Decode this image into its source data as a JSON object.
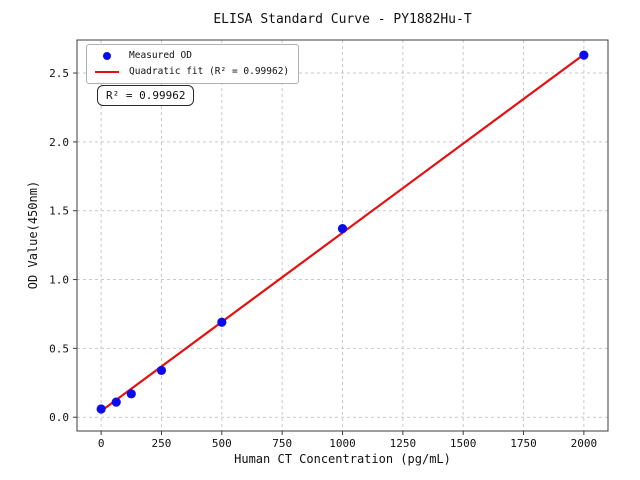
{
  "figure": {
    "background": "#ffffff",
    "text_color": "#111111",
    "axis_color": "#3c3c3c"
  },
  "chart_data": {
    "type": "scatter",
    "title": "ELISA Standard Curve - PY1882Hu-T",
    "xlabel": "Human CT Concentration (pg/mL)",
    "ylabel": "OD Value(450nm)",
    "xlim": [
      -100,
      2100
    ],
    "ylim": [
      -0.1,
      2.74
    ],
    "xticks": {
      "values": [
        0,
        250,
        500,
        750,
        1000,
        1250,
        1500,
        1750,
        2000
      ],
      "labels": [
        "0",
        "250",
        "500",
        "750",
        "1000",
        "1250",
        "1500",
        "1750",
        "2000"
      ]
    },
    "yticks": {
      "values": [
        0.0,
        0.5,
        1.0,
        1.5,
        2.0,
        2.5
      ],
      "labels": [
        "0.0",
        "0.5",
        "1.0",
        "1.5",
        "2.0",
        "2.5"
      ]
    },
    "grid": {
      "on": true,
      "style": "dashed",
      "color": "#c9c9c9"
    },
    "legend": {
      "position": "upper-left"
    },
    "series": [
      {
        "name": "Measured OD",
        "type": "scatter",
        "marker": "circle",
        "color": "#0b0bee",
        "x": [
          0,
          62.5,
          125,
          250,
          500,
          1000,
          2000
        ],
        "y": [
          0.06,
          0.11,
          0.17,
          0.34,
          0.69,
          1.37,
          2.63
        ]
      },
      {
        "name": "Quadratic fit (R² = 0.99962)",
        "type": "line",
        "color": "#e60f0f",
        "x": [
          0,
          2000
        ],
        "y": [
          0.045,
          2.635
        ]
      }
    ],
    "annotation": {
      "text": "R² = 0.99962"
    },
    "r_squared": 0.99962
  }
}
